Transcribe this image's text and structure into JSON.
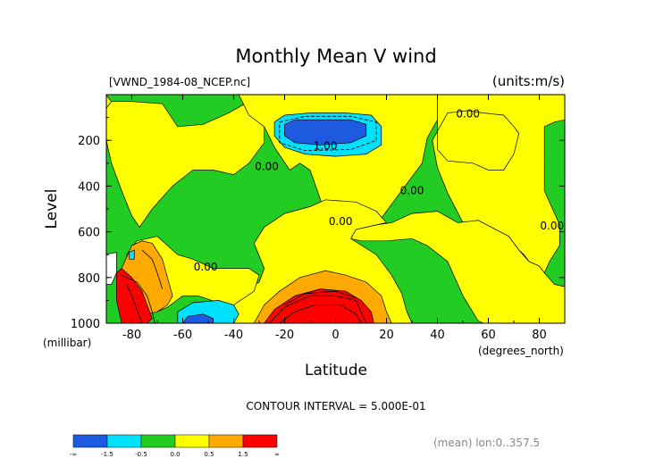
{
  "chart_data": {
    "type": "heatmap",
    "title": "Monthly Mean V wind",
    "file_label": "[VWND_1984-08_NCEP.nc]",
    "units_label": "(units:m/s)",
    "xlabel": "Latitude",
    "x_units": "(degrees_north)",
    "ylabel": "Level",
    "y_units": "(millibar)",
    "xlim": [
      -90,
      90
    ],
    "ylim": [
      1000,
      0
    ],
    "x_ticks": [
      -80,
      -60,
      -40,
      -20,
      0,
      20,
      40,
      60,
      80
    ],
    "y_ticks": [
      200,
      400,
      600,
      800,
      1000
    ],
    "contour_interval_label": "CONTOUR INTERVAL = 5.000E-01",
    "footer_label": "(mean) lon:0..357.5",
    "contour_labels": [
      {
        "text": "0.00",
        "x": 52,
        "y": 100
      },
      {
        "text": "0.00",
        "x": -27,
        "y": 330
      },
      {
        "text": "1.00",
        "x": -4,
        "y": 240
      },
      {
        "text": "0.00",
        "x": 30,
        "y": 435
      },
      {
        "text": "0.00",
        "x": 2,
        "y": 570
      },
      {
        "text": "0.00",
        "x": -51,
        "y": 770
      },
      {
        "text": "0.00",
        "x": 85,
        "y": 590
      }
    ],
    "colorbar": {
      "bins": [
        {
          "color": "#1e5ae0"
        },
        {
          "color": "#00e0ff"
        },
        {
          "color": "#22cc22"
        },
        {
          "color": "#ffff00"
        },
        {
          "color": "#ffaa00"
        },
        {
          "color": "#ff0000"
        }
      ],
      "tick_labels": [
        "-∞",
        "-1.5",
        "-0.5",
        "0.0",
        "0.5",
        "1.5",
        "∞"
      ]
    },
    "regions": [
      {
        "name": "green-base",
        "level": "-0.5..0.0",
        "color": "#22cc22",
        "poly": [
          [
            -90,
            0
          ],
          [
            90,
            0
          ],
          [
            90,
            1000
          ],
          [
            -90,
            1000
          ]
        ]
      },
      {
        "name": "yellow-upper-left",
        "level": "0.0..0.5",
        "color": "#ffff00",
        "poly": [
          [
            -80,
            30
          ],
          [
            -68,
            40
          ],
          [
            -62,
            140
          ],
          [
            -52,
            130
          ],
          [
            -42,
            80
          ],
          [
            -34,
            30
          ],
          [
            -28,
            80
          ],
          [
            -28,
            210
          ],
          [
            -34,
            300
          ],
          [
            -40,
            350
          ],
          [
            -48,
            330
          ],
          [
            -56,
            330
          ],
          [
            -64,
            400
          ],
          [
            -72,
            500
          ],
          [
            -77,
            580
          ],
          [
            -80,
            530
          ],
          [
            -84,
            420
          ],
          [
            -88,
            300
          ],
          [
            -90,
            200
          ],
          [
            -90,
            30
          ]
        ]
      },
      {
        "name": "yellow-cap-left",
        "level": "0.0..0.5",
        "color": "#ffff00",
        "poly": [
          [
            -91,
            -10
          ],
          [
            -88,
            30
          ],
          [
            -90,
            60
          ],
          [
            -91,
            60
          ]
        ]
      },
      {
        "name": "yellow-center-right",
        "level": "0.0..0.5",
        "color": "#ffff00",
        "poly": [
          [
            -38,
            0
          ],
          [
            40,
            0
          ],
          [
            40,
            110
          ],
          [
            36,
            190
          ],
          [
            34,
            300
          ],
          [
            26,
            420
          ],
          [
            18,
            540
          ],
          [
            10,
            560
          ],
          [
            -5,
            490
          ],
          [
            -10,
            330
          ],
          [
            -14,
            300
          ],
          [
            -18,
            330
          ],
          [
            -24,
            230
          ],
          [
            -28,
            140
          ],
          [
            -34,
            90
          ]
        ]
      },
      {
        "name": "yellow-right-column",
        "level": "0.0..0.5",
        "color": "#ffff00",
        "poly": [
          [
            40,
            0
          ],
          [
            90,
            0
          ],
          [
            90,
            110
          ],
          [
            86,
            120
          ],
          [
            82,
            140
          ],
          [
            82,
            420
          ],
          [
            88,
            570
          ],
          [
            88,
            660
          ],
          [
            84,
            730
          ],
          [
            82,
            780
          ],
          [
            80,
            750
          ],
          [
            76,
            730
          ],
          [
            74,
            700
          ],
          [
            72,
            680
          ],
          [
            68,
            620
          ],
          [
            56,
            550
          ],
          [
            50,
            560
          ],
          [
            44,
            430
          ],
          [
            40,
            320
          ],
          [
            38,
            200
          ],
          [
            44,
            80
          ],
          [
            52,
            70
          ],
          [
            58,
            80
          ],
          [
            66,
            90
          ],
          [
            70,
            140
          ],
          [
            72,
            170
          ],
          [
            70,
            260
          ],
          [
            66,
            330
          ],
          [
            60,
            330
          ],
          [
            54,
            300
          ],
          [
            44,
            290
          ],
          [
            40,
            240
          ]
        ]
      },
      {
        "name": "yellow-right-low",
        "level": "0.0..0.5",
        "color": "#ffff00",
        "poly": [
          [
            56,
            550
          ],
          [
            68,
            620
          ],
          [
            72,
            680
          ],
          [
            76,
            730
          ],
          [
            80,
            750
          ],
          [
            82,
            780
          ],
          [
            86,
            830
          ],
          [
            90,
            840
          ],
          [
            90,
            1000
          ],
          [
            58,
            1000
          ],
          [
            56,
            990
          ],
          [
            50,
            880
          ],
          [
            44,
            730
          ],
          [
            36,
            660
          ],
          [
            30,
            630
          ],
          [
            20,
            640
          ],
          [
            10,
            640
          ],
          [
            6,
            630
          ],
          [
            8,
            590
          ],
          [
            16,
            570
          ],
          [
            22,
            560
          ],
          [
            30,
            520
          ],
          [
            40,
            510
          ],
          [
            48,
            560
          ]
        ]
      },
      {
        "name": "yellow-mid-bottom",
        "level": "0.0..0.5",
        "color": "#ffff00",
        "poly": [
          [
            -28,
            760
          ],
          [
            -32,
            650
          ],
          [
            -28,
            580
          ],
          [
            -20,
            520
          ],
          [
            -10,
            490
          ],
          [
            -4,
            460
          ],
          [
            8,
            470
          ],
          [
            16,
            510
          ],
          [
            20,
            560
          ],
          [
            16,
            570
          ],
          [
            8,
            590
          ],
          [
            6,
            630
          ],
          [
            16,
            700
          ],
          [
            22,
            790
          ],
          [
            26,
            870
          ],
          [
            28,
            950
          ],
          [
            30,
            1000
          ],
          [
            -40,
            1000
          ],
          [
            -42,
            920
          ],
          [
            -36,
            860
          ],
          [
            -30,
            820
          ]
        ]
      },
      {
        "name": "yellow-lower-left",
        "level": "0.0..0.5",
        "color": "#ffff00",
        "poly": [
          [
            -78,
            640
          ],
          [
            -70,
            620
          ],
          [
            -62,
            700
          ],
          [
            -56,
            720
          ],
          [
            -48,
            760
          ],
          [
            -40,
            760
          ],
          [
            -34,
            760
          ],
          [
            -30,
            790
          ],
          [
            -32,
            860
          ],
          [
            -40,
            920
          ],
          [
            -46,
            910
          ],
          [
            -54,
            880
          ],
          [
            -60,
            880
          ],
          [
            -66,
            930
          ],
          [
            -70,
            950
          ],
          [
            -74,
            920
          ],
          [
            -77,
            880
          ],
          [
            -80,
            820
          ],
          [
            -82,
            700
          ]
        ]
      },
      {
        "name": "orange-left-lobe",
        "level": "0.5..1.5",
        "color": "#ffaa00",
        "poly": [
          [
            -80,
            660
          ],
          [
            -76,
            640
          ],
          [
            -72,
            650
          ],
          [
            -68,
            720
          ],
          [
            -66,
            800
          ],
          [
            -64,
            880
          ],
          [
            -66,
            920
          ],
          [
            -70,
            950
          ],
          [
            -74,
            960
          ],
          [
            -78,
            920
          ],
          [
            -82,
            860
          ],
          [
            -84,
            760
          ]
        ]
      },
      {
        "name": "orange-central-lobe",
        "level": "0.5..1.5",
        "color": "#ffaa00",
        "poly": [
          [
            -32,
            1000
          ],
          [
            -28,
            920
          ],
          [
            -22,
            860
          ],
          [
            -14,
            800
          ],
          [
            -4,
            770
          ],
          [
            4,
            790
          ],
          [
            12,
            820
          ],
          [
            18,
            880
          ],
          [
            20,
            950
          ],
          [
            22,
            1000
          ]
        ]
      },
      {
        "name": "red-left-core",
        "level": ">1.5",
        "color": "#ff0000",
        "poly": [
          [
            -86,
            780
          ],
          [
            -84,
            760
          ],
          [
            -80,
            800
          ],
          [
            -76,
            860
          ],
          [
            -74,
            920
          ],
          [
            -72,
            980
          ],
          [
            -74,
            1000
          ],
          [
            -84,
            1000
          ],
          [
            -86,
            900
          ]
        ]
      },
      {
        "name": "red-central-core",
        "level": ">1.5",
        "color": "#ff0000",
        "poly": [
          [
            -28,
            1000
          ],
          [
            -24,
            940
          ],
          [
            -16,
            880
          ],
          [
            -6,
            850
          ],
          [
            4,
            860
          ],
          [
            10,
            900
          ],
          [
            14,
            950
          ],
          [
            15,
            1000
          ]
        ]
      },
      {
        "name": "cyan-upper-jet",
        "level": "-1.5..-0.5",
        "color": "#00e0ff",
        "poly": [
          [
            -24,
            120
          ],
          [
            -20,
            90
          ],
          [
            -10,
            80
          ],
          [
            4,
            80
          ],
          [
            14,
            90
          ],
          [
            18,
            140
          ],
          [
            18,
            220
          ],
          [
            12,
            260
          ],
          [
            0,
            270
          ],
          [
            -12,
            260
          ],
          [
            -20,
            230
          ],
          [
            -24,
            180
          ]
        ]
      },
      {
        "name": "blue-upper-jet-core",
        "level": "<-1.5",
        "color": "#1e5ae0",
        "poly": [
          [
            -20,
            130
          ],
          [
            -16,
            110
          ],
          [
            -6,
            110
          ],
          [
            6,
            110
          ],
          [
            12,
            130
          ],
          [
            12,
            180
          ],
          [
            6,
            210
          ],
          [
            -6,
            220
          ],
          [
            -16,
            210
          ],
          [
            -20,
            180
          ]
        ]
      },
      {
        "name": "cyan-lower-left",
        "level": "-1.5..-0.5",
        "color": "#00e0ff",
        "poly": [
          [
            -62,
            1000
          ],
          [
            -62,
            950
          ],
          [
            -56,
            910
          ],
          [
            -46,
            900
          ],
          [
            -40,
            920
          ],
          [
            -38,
            960
          ],
          [
            -40,
            1000
          ]
        ]
      },
      {
        "name": "blue-lower-left",
        "level": "<-1.5",
        "color": "#1e5ae0",
        "poly": [
          [
            -60,
            1000
          ],
          [
            -58,
            970
          ],
          [
            -52,
            960
          ],
          [
            -48,
            980
          ],
          [
            -48,
            1000
          ]
        ]
      },
      {
        "name": "cyan-speck",
        "level": "-1.5..-0.5",
        "color": "#00e0ff",
        "poly": [
          [
            -81,
            690
          ],
          [
            -79,
            680
          ],
          [
            -79,
            720
          ],
          [
            -81,
            720
          ]
        ]
      },
      {
        "name": "missing-data",
        "level": "undefined",
        "color": "#ffffff",
        "poly": [
          [
            -91,
            700
          ],
          [
            -86,
            690
          ],
          [
            -86,
            780
          ],
          [
            -88,
            830
          ],
          [
            -91,
            830
          ]
        ]
      }
    ],
    "contours": [
      [
        [
          -84,
          790
        ],
        [
          -78,
          820
        ],
        [
          -74,
          880
        ],
        [
          -72,
          950
        ],
        [
          -71,
          1000
        ]
      ],
      [
        [
          -82,
          830
        ],
        [
          -80,
          880
        ],
        [
          -78,
          940
        ],
        [
          -76,
          1000
        ]
      ],
      [
        [
          -76,
          680
        ],
        [
          -72,
          720
        ],
        [
          -70,
          780
        ],
        [
          -68,
          850
        ]
      ],
      [
        [
          -26,
          1000
        ],
        [
          -20,
          930
        ],
        [
          -10,
          880
        ],
        [
          0,
          880
        ],
        [
          8,
          900
        ],
        [
          12,
          1000
        ]
      ],
      [
        [
          -22,
          1000
        ],
        [
          -16,
          950
        ],
        [
          -8,
          920
        ],
        [
          2,
          920
        ],
        [
          8,
          960
        ],
        [
          10,
          1000
        ]
      ],
      [
        [
          -20,
          920
        ],
        [
          -12,
          870
        ],
        [
          0,
          860
        ],
        [
          8,
          890
        ]
      ],
      [
        [
          -22,
          120
        ],
        [
          -12,
          95
        ],
        [
          6,
          95
        ],
        [
          16,
          120
        ],
        [
          16,
          200
        ],
        [
          6,
          240
        ],
        [
          -12,
          245
        ],
        [
          -22,
          210
        ],
        [
          -22,
          120
        ]
      ]
    ]
  }
}
